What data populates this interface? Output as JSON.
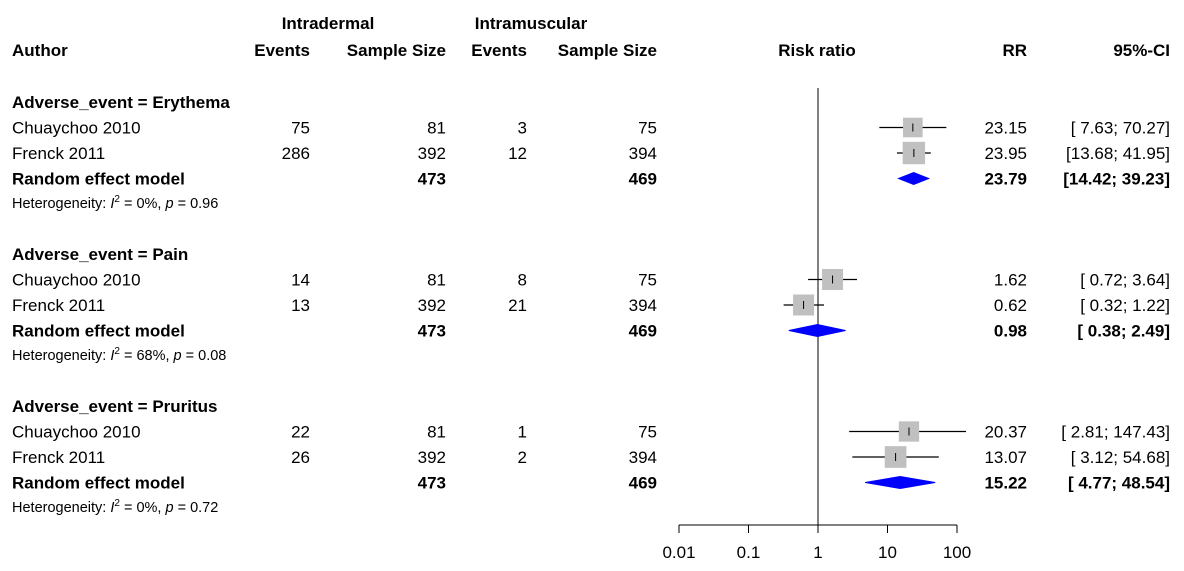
{
  "header": {
    "group1": "Intradermal",
    "group2": "Intramuscular",
    "author": "Author",
    "events": "Events",
    "sample_size": "Sample Size",
    "risk_ratio": "Risk ratio",
    "rr": "RR",
    "ci": "95%-CI"
  },
  "chart_data": {
    "type": "forest",
    "xscale": "log",
    "xlim": [
      0.01,
      100
    ],
    "xticks": [
      0.01,
      0.1,
      1,
      10,
      100
    ],
    "xtick_labels": [
      "0.01",
      "0.1",
      "1",
      "10",
      "100"
    ],
    "reference_line": 1,
    "colors": {
      "square": "#c0c0c0",
      "diamond": "#0000ff"
    },
    "subgroups": [
      {
        "label": "Adverse_event = Erythema",
        "studies": [
          {
            "author": "Chuaychoo 2010",
            "e1": "75",
            "n1": "81",
            "e2": "3",
            "n2": "75",
            "rr": 23.15,
            "lo": 7.63,
            "hi": 70.27,
            "weight": 0.4,
            "rr_text": "23.15",
            "ci_text": "[ 7.63;  70.27]"
          },
          {
            "author": "Frenck 2011",
            "e1": "286",
            "n1": "392",
            "e2": "12",
            "n2": "394",
            "rr": 23.95,
            "lo": 13.68,
            "hi": 41.95,
            "weight": 0.6,
            "rr_text": "23.95",
            "ci_text": "[13.68;  41.95]"
          }
        ],
        "model": {
          "label": "Random effect model",
          "n1": "473",
          "n2": "469",
          "rr": 23.79,
          "lo": 14.42,
          "hi": 39.23,
          "rr_text": "23.79",
          "ci_text": "[14.42;  39.23]"
        },
        "heterogeneity": {
          "prefix": "Heterogeneity: ",
          "i2_pre": "I",
          "i2_sup": "2",
          "i2_val": " = 0%, ",
          "p_pre": "p",
          "p_val": " = 0.96"
        }
      },
      {
        "label": "Adverse_event = Pain",
        "studies": [
          {
            "author": "Chuaychoo 2010",
            "e1": "14",
            "n1": "81",
            "e2": "8",
            "n2": "75",
            "rr": 1.62,
            "lo": 0.72,
            "hi": 3.64,
            "weight": 0.5,
            "rr_text": "1.62",
            "ci_text": "[ 0.72;   3.64]"
          },
          {
            "author": "Frenck 2011",
            "e1": "13",
            "n1": "392",
            "e2": "21",
            "n2": "394",
            "rr": 0.62,
            "lo": 0.32,
            "hi": 1.22,
            "weight": 0.5,
            "rr_text": "0.62",
            "ci_text": "[ 0.32;   1.22]"
          }
        ],
        "model": {
          "label": "Random effect model",
          "n1": "473",
          "n2": "469",
          "rr": 0.98,
          "lo": 0.38,
          "hi": 2.49,
          "rr_text": "0.98",
          "ci_text": "[ 0.38;   2.49]"
        },
        "heterogeneity": {
          "prefix": "Heterogeneity: ",
          "i2_pre": "I",
          "i2_sup": "2",
          "i2_val": " = 68%, ",
          "p_pre": "p",
          "p_val": " = 0.08"
        }
      },
      {
        "label": "Adverse_event = Pruritus",
        "studies": [
          {
            "author": "Chuaychoo 2010",
            "e1": "22",
            "n1": "81",
            "e2": "1",
            "n2": "75",
            "rr": 20.37,
            "lo": 2.81,
            "hi": 147.43,
            "weight": 0.45,
            "rr_text": "20.37",
            "ci_text": "[ 2.81; 147.43]"
          },
          {
            "author": "Frenck 2011",
            "e1": "26",
            "n1": "392",
            "e2": "2",
            "n2": "394",
            "rr": 13.07,
            "lo": 3.12,
            "hi": 54.68,
            "weight": 0.55,
            "rr_text": "13.07",
            "ci_text": "[ 3.12;  54.68]"
          }
        ],
        "model": {
          "label": "Random effect model",
          "n1": "473",
          "n2": "469",
          "rr": 15.22,
          "lo": 4.77,
          "hi": 48.54,
          "rr_text": "15.22",
          "ci_text": "[ 4.77;  48.54]"
        },
        "heterogeneity": {
          "prefix": "Heterogeneity: ",
          "i2_pre": "I",
          "i2_sup": "2",
          "i2_val": " = 0%, ",
          "p_pre": "p",
          "p_val": " = 0.72"
        }
      }
    ]
  }
}
